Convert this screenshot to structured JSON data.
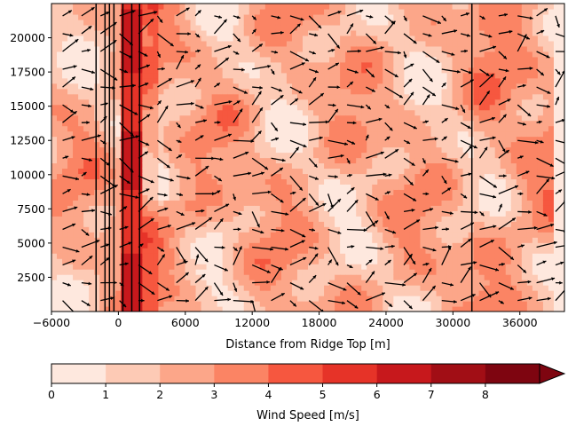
{
  "chart_data": [
    {
      "type": "heatmap",
      "subtype": "filled-contour-with-quiver",
      "xlabel": "Distance from Ridge Top [m]",
      "ylabel": "",
      "xlim": [
        -6000,
        40000
      ],
      "ylim": [
        0,
        22500
      ],
      "x_ticks": [
        -6000,
        0,
        6000,
        12000,
        18000,
        24000,
        30000,
        36000
      ],
      "x_tick_labels": [
        "−6000",
        "0",
        "6000",
        "12000",
        "18000",
        "24000",
        "30000",
        "36000"
      ],
      "y_ticks": [
        2500,
        5000,
        7500,
        10000,
        12500,
        15000,
        17500,
        20000
      ],
      "y_tick_labels": [
        "2500",
        "5000",
        "7500",
        "10000",
        "12500",
        "15000",
        "17500",
        "20000"
      ],
      "vertical_lines_x": [
        -2000,
        -1200,
        -800,
        -400,
        400,
        1200,
        1900,
        31700
      ],
      "field_description_values": {
        "background_speed_range": [
          1,
          4
        ],
        "high_speed_band_x": [
          0,
          2000
        ],
        "high_speed_band_value": 6
      },
      "quiver": true
    },
    {
      "type": "colorbar",
      "label": "Wind Speed [m/s]",
      "levels": [
        0,
        1,
        2,
        3,
        4,
        5,
        6,
        7,
        8,
        9
      ],
      "tick_labels": [
        "0",
        "1",
        "2",
        "3",
        "4",
        "5",
        "6",
        "7",
        "8"
      ],
      "extend": "max",
      "colors": [
        "#fee8de",
        "#fdcab5",
        "#fca689",
        "#fb8464",
        "#f6573f",
        "#e63328",
        "#c7181c",
        "#a10e15",
        "#7e0510"
      ]
    }
  ]
}
